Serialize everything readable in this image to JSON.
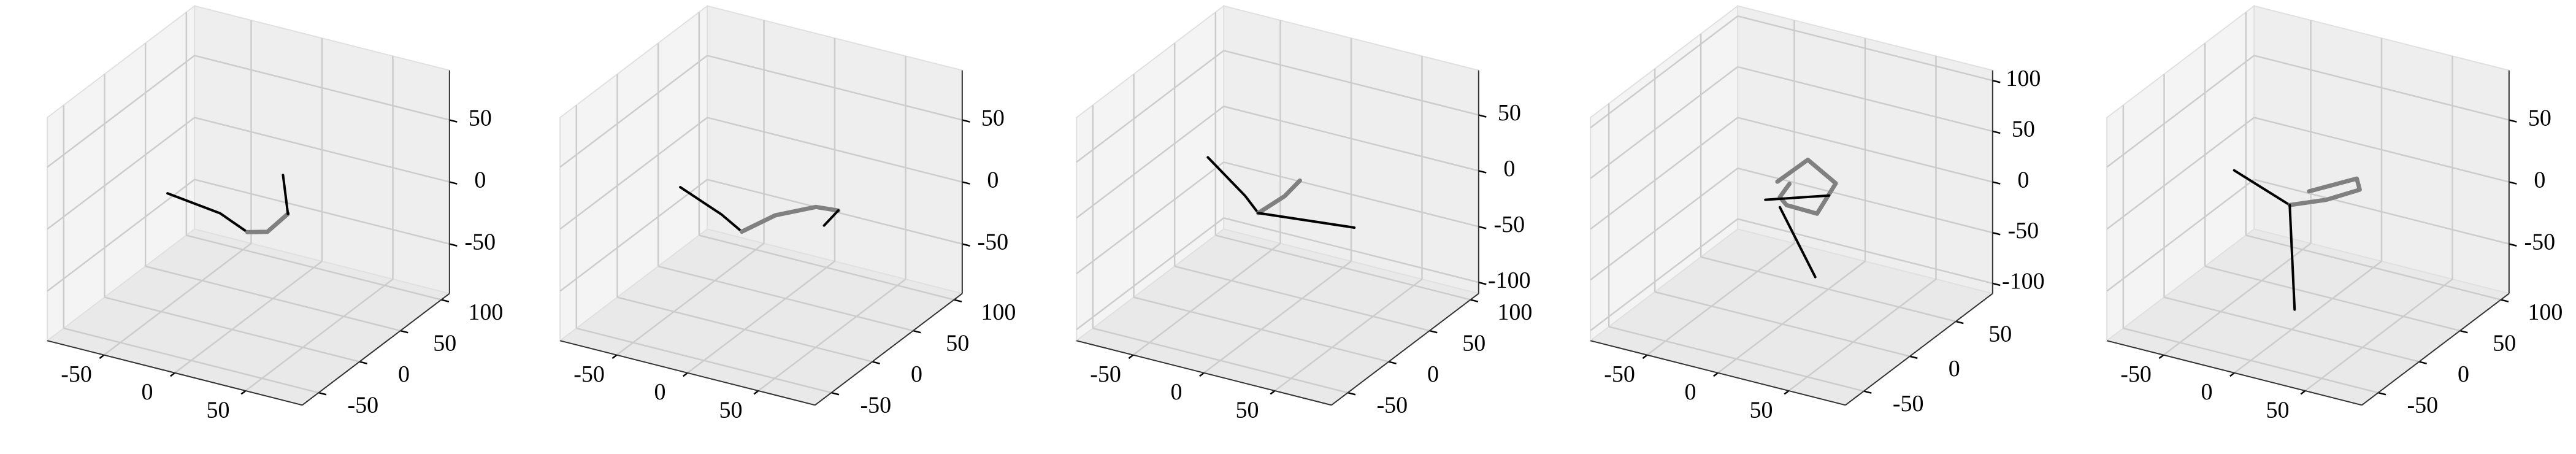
{
  "chart_data": [
    {
      "type": "line3d",
      "xlim": [
        -90,
        90
      ],
      "ylim": [
        -70,
        110
      ],
      "zlim": [
        -90,
        90
      ],
      "xticks": [
        -50,
        0,
        50
      ],
      "yticks": [
        -50,
        0,
        50,
        100
      ],
      "zticks": [
        -50,
        0,
        50
      ],
      "series": [
        {
          "color": "#000000",
          "x": [
            -60,
            -20,
            5
          ],
          "y": [
            25,
            20,
            10
          ],
          "z": [
            -10,
            -12,
            -15
          ]
        },
        {
          "color": "#808080",
          "x": [
            5,
            18,
            25
          ],
          "y": [
            10,
            12,
            25
          ],
          "z": [
            -15,
            -12,
            -2
          ]
        },
        {
          "color": "#000000",
          "x": [
            25,
            10
          ],
          "y": [
            25,
            45
          ],
          "z": [
            -2,
            15
          ]
        }
      ]
    },
    {
      "type": "line3d",
      "xlim": [
        -90,
        90
      ],
      "ylim": [
        -70,
        110
      ],
      "zlim": [
        -90,
        90
      ],
      "xticks": [
        -50,
        0,
        50
      ],
      "yticks": [
        -50,
        0,
        50,
        100
      ],
      "zticks": [
        -50,
        0,
        50
      ],
      "series": [
        {
          "color": "#000000",
          "x": [
            -60,
            -25,
            -5
          ],
          "y": [
            25,
            15,
            5
          ],
          "z": [
            -5,
            -12,
            -15
          ]
        },
        {
          "color": "#808080",
          "x": [
            -5,
            10,
            30,
            40
          ],
          "y": [
            5,
            20,
            35,
            45
          ],
          "z": [
            -15,
            -5,
            0,
            -5
          ]
        },
        {
          "color": "#000000",
          "x": [
            40,
            30
          ],
          "y": [
            45,
            45
          ],
          "z": [
            -5,
            -20
          ]
        }
      ]
    },
    {
      "type": "line3d",
      "xlim": [
        -90,
        90
      ],
      "ylim": [
        -70,
        110
      ],
      "zlim": [
        -110,
        90
      ],
      "xticks": [
        -50,
        0,
        50
      ],
      "yticks": [
        -50,
        0,
        50,
        100
      ],
      "zticks": [
        -100,
        -50,
        0,
        50
      ],
      "series": [
        {
          "color": "#000000",
          "x": [
            -55,
            -20,
            -5
          ],
          "y": [
            30,
            15,
            5
          ],
          "z": [
            10,
            -5,
            -10
          ]
        },
        {
          "color": "#808080",
          "x": [
            -5,
            5,
            10
          ],
          "y": [
            5,
            20,
            30
          ],
          "z": [
            -10,
            0,
            10
          ]
        },
        {
          "color": "#000000",
          "x": [
            -5,
            60
          ],
          "y": [
            5,
            10
          ],
          "z": [
            -10,
            -5
          ]
        }
      ]
    },
    {
      "type": "line3d",
      "xlim": [
        -90,
        90
      ],
      "ylim": [
        -70,
        90
      ],
      "zlim": [
        -110,
        110
      ],
      "xticks": [
        -50,
        0,
        50
      ],
      "yticks": [
        -50,
        0,
        50
      ],
      "zticks": [
        -100,
        -50,
        0,
        50,
        100
      ],
      "series": [
        {
          "color": "#808080",
          "x": [
            -10,
            5,
            15,
            5,
            -10,
            -5,
            5
          ],
          "y": [
            10,
            20,
            35,
            30,
            20,
            5,
            0
          ],
          "z": [
            20,
            40,
            10,
            -20,
            -10,
            10,
            30
          ]
        },
        {
          "color": "#000000",
          "x": [
            -25,
            20
          ],
          "y": [
            20,
            20
          ],
          "z": [
            -10,
            10
          ]
        },
        {
          "color": "#000000",
          "x": [
            -5,
            20
          ],
          "y": [
            5,
            5
          ],
          "z": [
            0,
            -60
          ]
        }
      ]
    },
    {
      "type": "line3d",
      "xlim": [
        -90,
        90
      ],
      "ylim": [
        -70,
        110
      ],
      "zlim": [
        -90,
        90
      ],
      "xticks": [
        -50,
        0,
        50
      ],
      "yticks": [
        -50,
        0,
        50,
        100
      ],
      "zticks": [
        -50,
        0,
        50
      ],
      "series": [
        {
          "color": "#000000",
          "x": [
            -55,
            -10
          ],
          "y": [
            25,
            15
          ],
          "z": [
            10,
            0
          ]
        },
        {
          "color": "#808080",
          "x": [
            -10,
            10,
            25,
            20,
            -5
          ],
          "y": [
            15,
            25,
            40,
            45,
            30
          ],
          "z": [
            0,
            5,
            10,
            15,
            5
          ]
        },
        {
          "color": "#000000",
          "x": [
            -10,
            5
          ],
          "y": [
            15,
            -5
          ],
          "z": [
            0,
            -70
          ]
        }
      ]
    }
  ]
}
